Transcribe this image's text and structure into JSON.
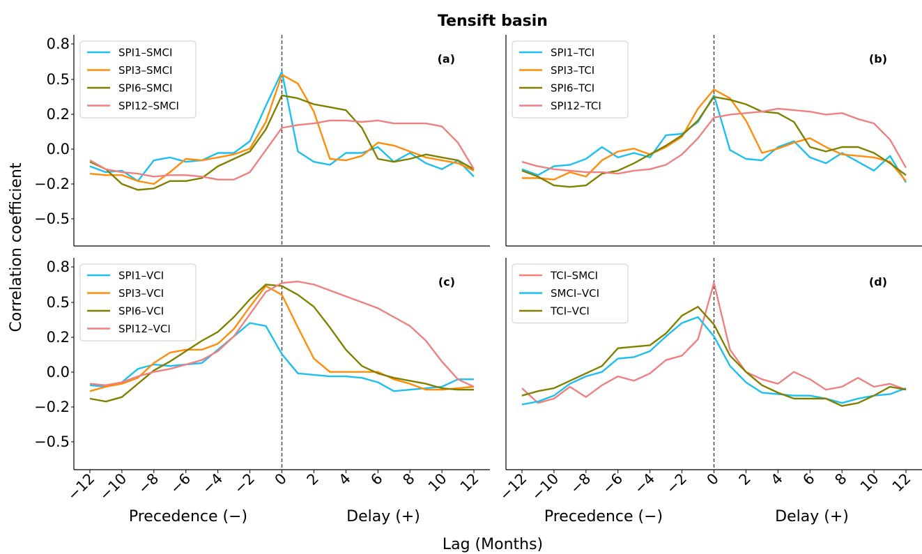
{
  "figure": {
    "title": "Tensift basin",
    "ylabel": "Correlation coefficient",
    "xlabel": "Lag (Months)",
    "precedence_label": "Precedence (−)",
    "delay_label": "Delay (+)"
  },
  "chart_data": [
    {
      "type": "line",
      "panel": "(a)",
      "x": [
        -12,
        -11,
        -10,
        -9,
        -8,
        -7,
        -6,
        -5,
        -4,
        -3,
        -2,
        -1,
        0,
        1,
        2,
        3,
        4,
        5,
        6,
        7,
        8,
        9,
        10,
        11,
        12
      ],
      "xticks": [
        -12,
        -10,
        -8,
        -6,
        -4,
        -2,
        0,
        2,
        4,
        6,
        8,
        10,
        12
      ],
      "xtick_labels": [
        "−12",
        "−10",
        "−8",
        "−6",
        "−4",
        "−2",
        "0",
        "2",
        "4",
        "6",
        "8",
        "10",
        "12"
      ],
      "yticks": [
        0.8,
        0.5,
        0.2,
        0.0,
        -0.2,
        -0.5
      ],
      "ytick_labels": [
        "0.8",
        "0.5",
        "0.2",
        "0.0",
        "−0.2",
        "−0.5"
      ],
      "xlim": [
        -13,
        13
      ],
      "ylim": [
        -0.6,
        0.83
      ],
      "vline_x": 0,
      "legend_position": "top-left",
      "series": [
        {
          "name": "SPI1–SMCI",
          "color": "#1cbfef",
          "values": [
            -0.06,
            -0.1,
            -0.09,
            -0.16,
            -0.02,
            0.0,
            -0.03,
            -0.02,
            0.03,
            0.03,
            0.11,
            0.35,
            0.58,
            0.04,
            -0.03,
            -0.05,
            0.03,
            0.03,
            0.07,
            -0.03,
            0.03,
            -0.04,
            -0.08,
            -0.02,
            -0.13
          ]
        },
        {
          "name": "SPI3–SMCI",
          "color": "#ff8c0a",
          "values": [
            -0.11,
            -0.12,
            -0.12,
            -0.16,
            -0.18,
            -0.1,
            -0.01,
            -0.02,
            0.0,
            0.02,
            0.06,
            0.24,
            0.56,
            0.5,
            0.31,
            -0.01,
            -0.02,
            0.01,
            0.1,
            0.08,
            0.04,
            0.0,
            -0.02,
            -0.04,
            -0.09
          ]
        },
        {
          "name": "SPI6–SMCI",
          "color": "#808000",
          "values": [
            -0.03,
            -0.08,
            -0.18,
            -0.22,
            -0.21,
            -0.16,
            -0.16,
            -0.14,
            -0.06,
            -0.01,
            0.04,
            0.19,
            0.42,
            0.4,
            0.36,
            0.34,
            0.32,
            0.2,
            -0.01,
            -0.03,
            -0.01,
            0.02,
            0.0,
            -0.02,
            -0.08
          ]
        },
        {
          "name": "SPI12–SMCI",
          "color": "#ee8080",
          "values": [
            -0.02,
            -0.08,
            -0.1,
            -0.11,
            -0.13,
            -0.12,
            -0.12,
            -0.13,
            -0.15,
            -0.15,
            -0.1,
            0.05,
            0.2,
            0.22,
            0.23,
            0.25,
            0.25,
            0.24,
            0.25,
            0.23,
            0.23,
            0.23,
            0.21,
            0.1,
            -0.08
          ]
        }
      ]
    },
    {
      "type": "line",
      "panel": "(b)",
      "x": [
        -12,
        -11,
        -10,
        -9,
        -8,
        -7,
        -6,
        -5,
        -4,
        -3,
        -2,
        -1,
        0,
        1,
        2,
        3,
        4,
        5,
        6,
        7,
        8,
        9,
        10,
        11,
        12
      ],
      "xticks": [
        -12,
        -10,
        -8,
        -6,
        -4,
        -2,
        0,
        2,
        4,
        6,
        8,
        10,
        12
      ],
      "xtick_labels": [
        "−12",
        "−10",
        "−8",
        "−6",
        "−4",
        "−2",
        "0",
        "2",
        "4",
        "6",
        "8",
        "10",
        "12"
      ],
      "yticks": [
        0.8,
        0.5,
        0.2,
        0.0,
        -0.2,
        -0.5
      ],
      "ytick_labels": [
        "0.8",
        "0.5",
        "0.2",
        "0.0",
        "−0.2",
        "−0.5"
      ],
      "xlim": [
        -13,
        13
      ],
      "ylim": [
        -0.6,
        0.83
      ],
      "vline_x": 0,
      "legend_position": "top-left",
      "series": [
        {
          "name": "SPI1–TCI",
          "color": "#1cbfef",
          "values": [
            -0.08,
            -0.12,
            -0.06,
            -0.05,
            -0.01,
            0.07,
            0.0,
            0.03,
            0.0,
            0.15,
            0.16,
            0.24,
            0.42,
            0.05,
            -0.01,
            -0.02,
            0.07,
            0.11,
            0.0,
            -0.04,
            0.03,
            -0.03,
            -0.09,
            0.01,
            -0.17
          ]
        },
        {
          "name": "SPI3–TCI",
          "color": "#ff8c0a",
          "values": [
            -0.14,
            -0.14,
            -0.15,
            -0.1,
            -0.13,
            -0.02,
            0.04,
            0.06,
            0.02,
            0.07,
            0.14,
            0.33,
            0.46,
            0.4,
            0.25,
            0.03,
            0.06,
            0.1,
            0.13,
            0.07,
            0.02,
            0.01,
            0.0,
            -0.03,
            -0.16
          ]
        },
        {
          "name": "SPI6–TCI",
          "color": "#808000",
          "values": [
            -0.09,
            -0.13,
            -0.19,
            -0.2,
            -0.19,
            -0.11,
            -0.09,
            -0.04,
            0.02,
            0.08,
            0.15,
            0.25,
            0.41,
            0.39,
            0.36,
            0.31,
            0.3,
            0.24,
            0.07,
            0.04,
            0.07,
            0.07,
            0.03,
            -0.04,
            -0.12
          ]
        },
        {
          "name": "SPI12–TCI",
          "color": "#ee8080",
          "values": [
            -0.03,
            -0.06,
            -0.08,
            -0.09,
            -0.1,
            -0.1,
            -0.11,
            -0.09,
            -0.08,
            -0.05,
            0.02,
            0.13,
            0.27,
            0.29,
            0.3,
            0.31,
            0.33,
            0.32,
            0.31,
            0.29,
            0.3,
            0.26,
            0.23,
            0.12,
            -0.07
          ]
        }
      ]
    },
    {
      "type": "line",
      "panel": "(c)",
      "x": [
        -12,
        -11,
        -10,
        -9,
        -8,
        -7,
        -6,
        -5,
        -4,
        -3,
        -2,
        -1,
        0,
        1,
        2,
        3,
        4,
        5,
        6,
        7,
        8,
        9,
        10,
        11,
        12
      ],
      "xticks": [
        -12,
        -10,
        -8,
        -6,
        -4,
        -2,
        0,
        2,
        4,
        6,
        8,
        10,
        12
      ],
      "xtick_labels": [
        "−12",
        "−10",
        "−8",
        "−6",
        "−4",
        "−2",
        "0",
        "2",
        "4",
        "6",
        "8",
        "10",
        "12"
      ],
      "yticks": [
        0.8,
        0.5,
        0.2,
        0.0,
        -0.2,
        -0.5
      ],
      "ytick_labels": [
        "0.8",
        "0.5",
        "0.2",
        "0.0",
        "−0.2",
        "−0.5"
      ],
      "xlim": [
        -13,
        13
      ],
      "ylim": [
        -0.6,
        0.83
      ],
      "vline_x": 0,
      "legend_position": "top-left",
      "series": [
        {
          "name": "SPI1–VCI",
          "color": "#1cbfef",
          "values": [
            -0.03,
            -0.04,
            -0.01,
            0.08,
            0.11,
            0.1,
            0.11,
            0.12,
            0.21,
            0.3,
            0.39,
            0.37,
            0.18,
            0.05,
            0.04,
            0.03,
            0.03,
            0.02,
            -0.01,
            -0.07,
            -0.06,
            -0.05,
            -0.04,
            0.01,
            0.01
          ]
        },
        {
          "name": "SPI3–VCI",
          "color": "#ff8c0a",
          "values": [
            -0.07,
            -0.04,
            -0.02,
            0.02,
            0.12,
            0.19,
            0.21,
            0.21,
            0.25,
            0.35,
            0.5,
            0.64,
            0.58,
            0.36,
            0.15,
            0.06,
            0.06,
            0.06,
            0.06,
            0.01,
            -0.02,
            -0.06,
            -0.06,
            -0.05,
            -0.04
          ]
        },
        {
          "name": "SPI6–VCI",
          "color": "#808000",
          "values": [
            -0.12,
            -0.14,
            -0.11,
            -0.02,
            0.07,
            0.13,
            0.2,
            0.27,
            0.33,
            0.43,
            0.55,
            0.65,
            0.64,
            0.58,
            0.5,
            0.36,
            0.21,
            0.1,
            0.05,
            0.02,
            0.0,
            -0.02,
            -0.05,
            -0.06,
            -0.06
          ]
        },
        {
          "name": "SPI12–VCI",
          "color": "#ee8080",
          "values": [
            -0.02,
            -0.03,
            -0.01,
            0.03,
            0.06,
            0.08,
            0.11,
            0.14,
            0.2,
            0.3,
            0.45,
            0.6,
            0.66,
            0.67,
            0.65,
            0.61,
            0.57,
            0.53,
            0.49,
            0.43,
            0.37,
            0.27,
            0.13,
            0.01,
            -0.04
          ]
        }
      ]
    },
    {
      "type": "line",
      "panel": "(d)",
      "x": [
        -12,
        -11,
        -10,
        -9,
        -8,
        -7,
        -6,
        -5,
        -4,
        -3,
        -2,
        -1,
        0,
        1,
        2,
        3,
        4,
        5,
        6,
        7,
        8,
        9,
        10,
        11,
        12
      ],
      "xticks": [
        -12,
        -10,
        -8,
        -6,
        -4,
        -2,
        0,
        2,
        4,
        6,
        8,
        10,
        12
      ],
      "xtick_labels": [
        "−12",
        "−10",
        "−8",
        "−6",
        "−4",
        "−2",
        "0",
        "2",
        "4",
        "6",
        "8",
        "10",
        "12"
      ],
      "yticks": [
        0.8,
        0.5,
        0.2,
        0.0,
        -0.2,
        -0.5
      ],
      "ytick_labels": [
        "0.8",
        "0.5",
        "0.2",
        "0.0",
        "−0.2",
        "−0.5"
      ],
      "xlim": [
        -13,
        13
      ],
      "ylim": [
        -0.6,
        0.83
      ],
      "vline_x": 0,
      "legend_position": "top-left",
      "series": [
        {
          "name": "TCI–SMCI",
          "color": "#ee8080",
          "values": [
            -0.05,
            -0.15,
            -0.12,
            -0.04,
            -0.11,
            -0.03,
            0.03,
            0.0,
            0.05,
            0.14,
            0.17,
            0.28,
            0.66,
            0.21,
            0.06,
            0.01,
            -0.02,
            0.06,
            0.01,
            -0.06,
            -0.04,
            0.02,
            -0.04,
            -0.02,
            -0.06
          ]
        },
        {
          "name": "SMCI–VCI",
          "color": "#1cbfef",
          "values": [
            -0.16,
            -0.14,
            -0.1,
            -0.02,
            0.03,
            0.06,
            0.15,
            0.16,
            0.2,
            0.3,
            0.39,
            0.43,
            0.3,
            0.1,
            -0.01,
            -0.08,
            -0.09,
            -0.1,
            -0.1,
            -0.12,
            -0.15,
            -0.12,
            -0.1,
            -0.09,
            -0.05
          ]
        },
        {
          "name": "TCI–VCI",
          "color": "#808000",
          "values": [
            -0.1,
            -0.07,
            -0.05,
            0.0,
            0.05,
            0.1,
            0.22,
            0.23,
            0.24,
            0.32,
            0.44,
            0.5,
            0.38,
            0.17,
            0.06,
            -0.03,
            -0.08,
            -0.12,
            -0.12,
            -0.12,
            -0.17,
            -0.15,
            -0.1,
            -0.04,
            -0.06
          ]
        }
      ]
    }
  ]
}
